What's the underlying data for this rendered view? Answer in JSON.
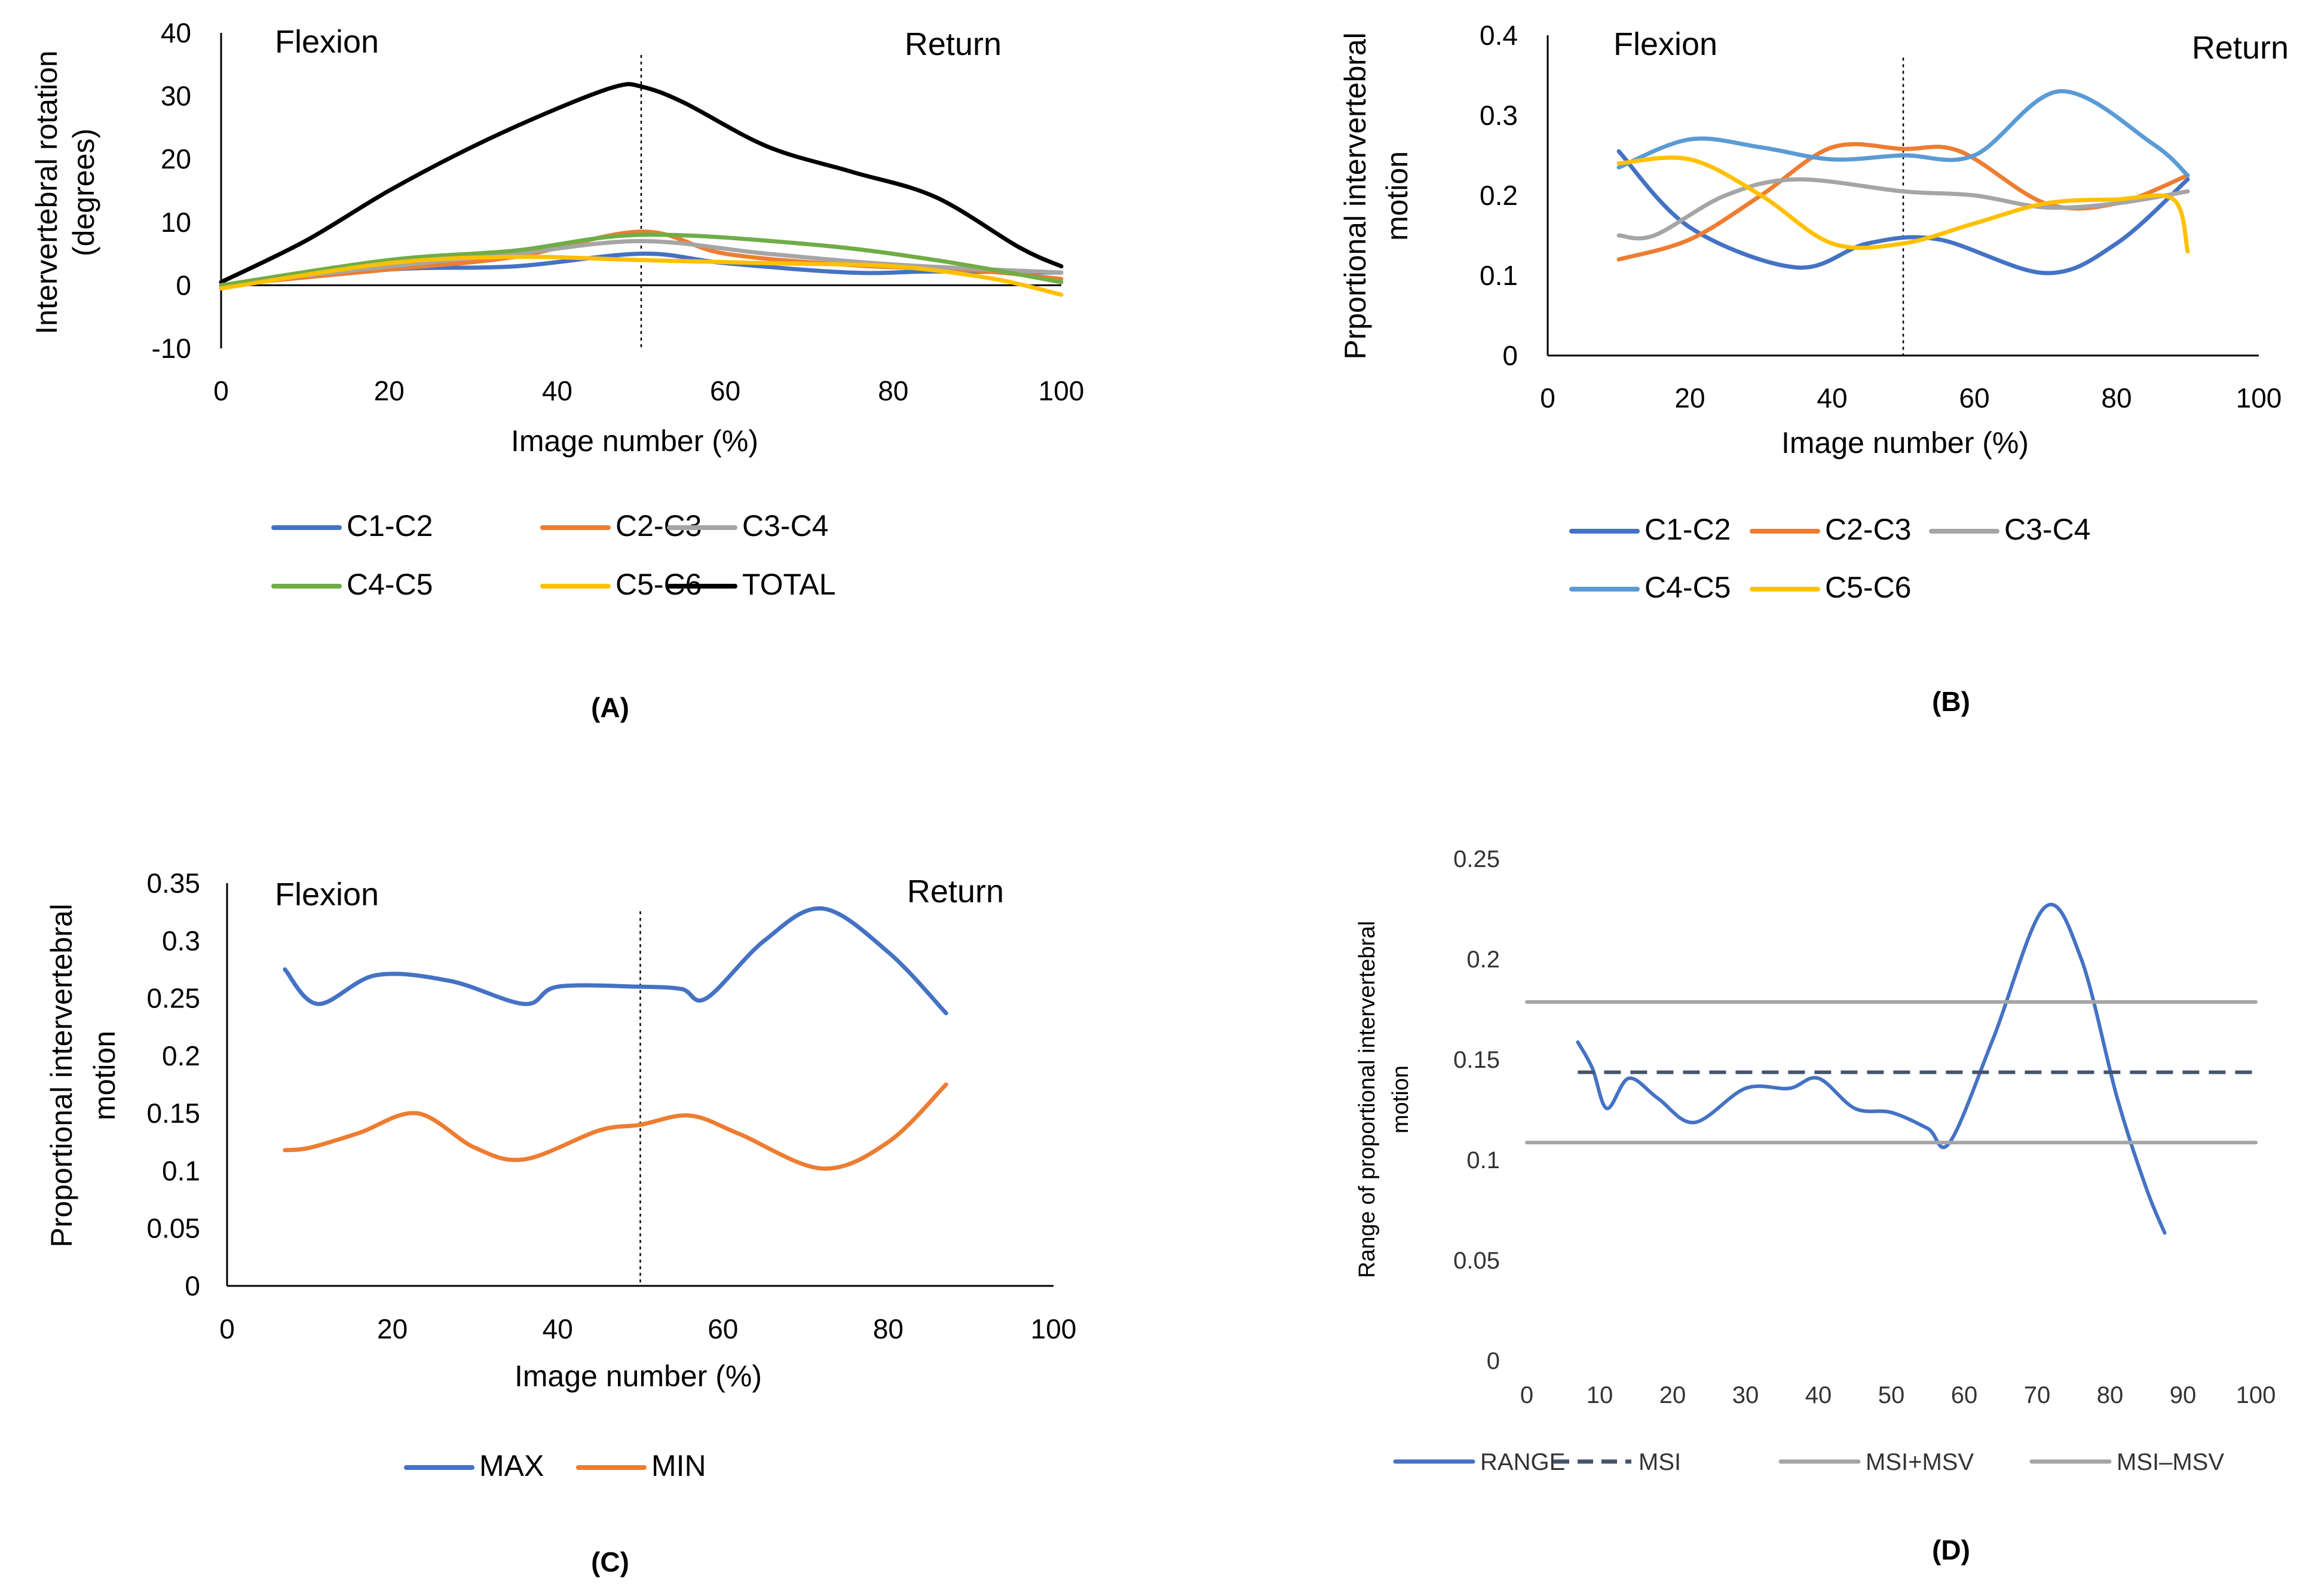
{
  "chart_data": [
    {
      "id": "A",
      "type": "line",
      "panel_label": "(A)",
      "xlabel": "Image number (%)",
      "ylabel": [
        "Intervertebral rotation",
        "(degrees)"
      ],
      "xlim": [
        0,
        100
      ],
      "ylim": [
        -10,
        40
      ],
      "xticks": [
        0,
        20,
        40,
        60,
        80,
        100
      ],
      "yticks": [
        -10,
        0,
        10,
        20,
        30,
        40
      ],
      "phase_labels": [
        "Flexion",
        "Return"
      ],
      "divider_x": 50,
      "legend_rows": [
        [
          "C1-C2",
          "C2-C3",
          "C3-C4"
        ],
        [
          "C4-C5",
          "C5-C6",
          "TOTAL"
        ]
      ],
      "series": [
        {
          "name": "TOTAL",
          "color": "#000000",
          "x": [
            0,
            10,
            20,
            30,
            40,
            47,
            50,
            55,
            65,
            75,
            85,
            95,
            100
          ],
          "y": [
            0.5,
            7,
            15,
            22,
            28,
            31.5,
            31.5,
            29,
            22,
            18,
            14,
            6,
            3
          ]
        },
        {
          "name": "C1-C2",
          "color": "#4472C4",
          "x": [
            0,
            20,
            35,
            50,
            60,
            75,
            85,
            100
          ],
          "y": [
            0,
            2.5,
            3,
            5,
            3.5,
            2,
            2.2,
            2
          ]
        },
        {
          "name": "C2-C3",
          "color": "#ED7D31",
          "x": [
            0,
            20,
            35,
            50,
            60,
            75,
            90,
            100
          ],
          "y": [
            0,
            2.5,
            4.5,
            8.5,
            5,
            3.2,
            2.3,
            1
          ]
        },
        {
          "name": "C3-C4",
          "color": "#A5A5A5",
          "x": [
            0,
            20,
            35,
            50,
            65,
            80,
            100
          ],
          "y": [
            0,
            3,
            5,
            7,
            5,
            3.3,
            2
          ]
        },
        {
          "name": "C4-C5",
          "color": "#70AD47",
          "x": [
            0,
            20,
            35,
            50,
            70,
            85,
            100
          ],
          "y": [
            0,
            4,
            5.5,
            8,
            6.5,
            4,
            0.5
          ]
        },
        {
          "name": "C5-C6",
          "color": "#FFC000",
          "x": [
            0,
            20,
            35,
            50,
            65,
            80,
            92,
            100
          ],
          "y": [
            -0.5,
            3.5,
            4.5,
            4,
            3.5,
            3,
            1,
            -1.5
          ]
        }
      ]
    },
    {
      "id": "B",
      "type": "line",
      "panel_label": "(B)",
      "xlabel": "Image number (%)",
      "ylabel": [
        "Prportional intervertebral",
        "motion"
      ],
      "xlim": [
        0,
        100
      ],
      "ylim": [
        0,
        0.4
      ],
      "xticks": [
        0,
        20,
        40,
        60,
        80,
        100
      ],
      "yticks": [
        0,
        0.1,
        0.2,
        0.3,
        0.4
      ],
      "phase_labels": [
        "Flexion",
        "Return"
      ],
      "divider_x": 50,
      "legend_rows": [
        [
          "C1-C2",
          "C2-C3",
          "C3-C4"
        ],
        [
          "C4-C5",
          "C5-C6"
        ]
      ],
      "series": [
        {
          "name": "C1-C2",
          "color": "#4472C4",
          "x": [
            10,
            20,
            35,
            45,
            55,
            70,
            80,
            90
          ],
          "y": [
            0.255,
            0.16,
            0.11,
            0.14,
            0.145,
            0.103,
            0.14,
            0.22
          ]
        },
        {
          "name": "C2-C3",
          "color": "#ED7D31",
          "x": [
            10,
            20,
            30,
            40,
            50,
            58,
            70,
            80,
            90
          ],
          "y": [
            0.12,
            0.145,
            0.2,
            0.26,
            0.258,
            0.255,
            0.19,
            0.19,
            0.225
          ]
        },
        {
          "name": "C3-C4",
          "color": "#A5A5A5",
          "x": [
            10,
            15,
            25,
            35,
            50,
            60,
            70,
            80,
            90
          ],
          "y": [
            0.15,
            0.15,
            0.2,
            0.22,
            0.205,
            0.2,
            0.185,
            0.19,
            0.205
          ]
        },
        {
          "name": "C4-C5",
          "color": "#5B9BD5",
          "x": [
            10,
            20,
            30,
            40,
            50,
            60,
            72,
            85,
            90
          ],
          "y": [
            0.235,
            0.27,
            0.26,
            0.245,
            0.25,
            0.25,
            0.33,
            0.265,
            0.225
          ]
        },
        {
          "name": "C5-C6",
          "color": "#FFC000",
          "x": [
            10,
            20,
            30,
            40,
            50,
            60,
            70,
            80,
            88,
            90
          ],
          "y": [
            0.24,
            0.245,
            0.2,
            0.14,
            0.14,
            0.165,
            0.19,
            0.195,
            0.195,
            0.13
          ]
        }
      ]
    },
    {
      "id": "C",
      "type": "line",
      "panel_label": "(C)",
      "xlabel": "Image number (%)",
      "ylabel": [
        "Proportional intervertebral",
        "motion"
      ],
      "xlim": [
        0,
        100
      ],
      "ylim": [
        0,
        0.35
      ],
      "xticks": [
        0,
        20,
        40,
        60,
        80,
        100
      ],
      "yticks": [
        0,
        0.05,
        0.1,
        0.15,
        0.2,
        0.25,
        0.3,
        0.35
      ],
      "ytick_labels": [
        "0",
        "0.05",
        "0.1",
        "0.15",
        "0.2",
        "0.25",
        "0.3",
        "0.35"
      ],
      "phase_labels": [
        "Flexion",
        "Return"
      ],
      "divider_x": 50,
      "legend_rows": [
        [
          "MAX",
          "MIN"
        ]
      ],
      "series": [
        {
          "name": "MAX",
          "color": "#4472C4",
          "x": [
            7,
            11,
            18,
            27,
            36,
            40,
            50,
            55,
            58,
            65,
            72,
            80,
            87
          ],
          "y": [
            0.275,
            0.245,
            0.27,
            0.265,
            0.245,
            0.26,
            0.26,
            0.258,
            0.25,
            0.3,
            0.328,
            0.29,
            0.237
          ]
        },
        {
          "name": "MIN",
          "color": "#ED7D31",
          "x": [
            7,
            10,
            16,
            23,
            30,
            36,
            45,
            50,
            56,
            62,
            72,
            80,
            87
          ],
          "y": [
            0.118,
            0.12,
            0.133,
            0.15,
            0.12,
            0.11,
            0.135,
            0.14,
            0.148,
            0.132,
            0.102,
            0.125,
            0.175
          ]
        }
      ]
    },
    {
      "id": "D",
      "type": "line",
      "panel_label": "(D)",
      "xlabel": "",
      "ylabel": [
        "Range of proportional intervertebral",
        "motion"
      ],
      "xlim": [
        0,
        100
      ],
      "ylim": [
        0,
        0.25
      ],
      "xticks": [
        0,
        10,
        20,
        30,
        40,
        50,
        60,
        70,
        80,
        90,
        100
      ],
      "yticks": [
        0,
        0.05,
        0.1,
        0.15,
        0.2,
        0.25
      ],
      "ytick_labels": [
        "0",
        "0.05",
        "0.1",
        "0.15",
        "0.2",
        "0.25"
      ],
      "legend_rows": [
        [
          "RANGE",
          "MSI",
          "MSI+MSV",
          "MSI–MSV"
        ]
      ],
      "series": [
        {
          "name": "RANGE",
          "color": "#4472C4",
          "x": [
            7,
            9,
            11,
            14,
            18,
            23,
            30,
            36,
            40,
            45,
            50,
            55,
            58,
            64,
            71,
            76,
            81,
            85,
            87.5
          ],
          "y": [
            0.158,
            0.145,
            0.125,
            0.14,
            0.13,
            0.118,
            0.135,
            0.135,
            0.14,
            0.125,
            0.123,
            0.115,
            0.108,
            0.16,
            0.225,
            0.2,
            0.13,
            0.085,
            0.063
          ]
        },
        {
          "name": "MSI",
          "color": "#44546A",
          "dashed": true,
          "x": [
            7,
            100
          ],
          "y": [
            0.143,
            0.143
          ]
        },
        {
          "name": "MSI+MSV",
          "color": "#A5A5A5",
          "x": [
            0,
            100
          ],
          "y": [
            0.178,
            0.178
          ]
        },
        {
          "name": "MSI–MSV",
          "color": "#A5A5A5",
          "x": [
            0,
            100
          ],
          "y": [
            0.108,
            0.108
          ]
        }
      ]
    }
  ]
}
